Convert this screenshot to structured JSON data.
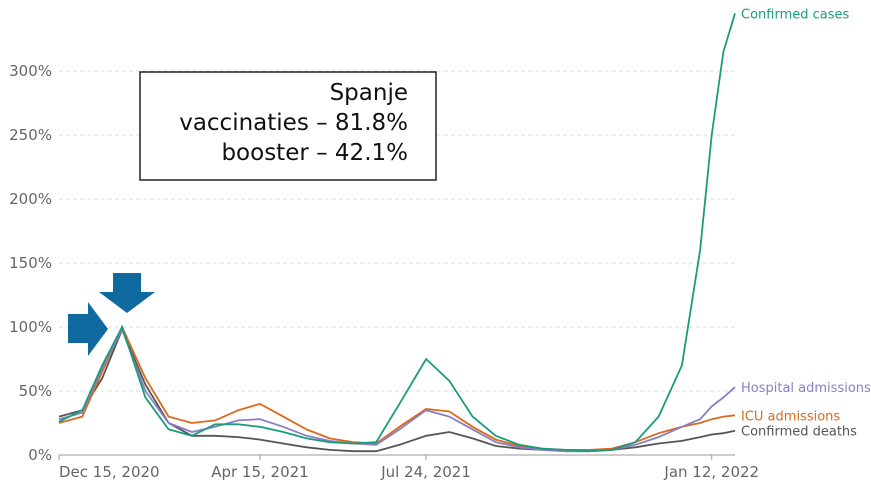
{
  "chart_data": {
    "type": "line",
    "x": [
      "2020-12-15",
      "2020-12-29",
      "2021-01-10",
      "2021-01-22",
      "2021-02-05",
      "2021-02-19",
      "2021-03-05",
      "2021-03-19",
      "2021-04-02",
      "2021-04-15",
      "2021-04-29",
      "2021-05-13",
      "2021-05-27",
      "2021-06-10",
      "2021-06-24",
      "2021-07-08",
      "2021-07-24",
      "2021-08-07",
      "2021-08-21",
      "2021-09-04",
      "2021-09-18",
      "2021-10-02",
      "2021-10-16",
      "2021-10-30",
      "2021-11-13",
      "2021-11-27",
      "2021-12-11",
      "2021-12-25",
      "2022-01-05",
      "2022-01-12",
      "2022-01-19",
      "2022-01-26"
    ],
    "series": [
      {
        "name": "Confirmed cases",
        "color": "#1a9c7c",
        "values": [
          26,
          35,
          70,
          100,
          45,
          20,
          15,
          24,
          24,
          22,
          18,
          13,
          10,
          9,
          10,
          40,
          75,
          58,
          30,
          15,
          8,
          5,
          4,
          3,
          4,
          10,
          30,
          70,
          160,
          250,
          315,
          345
        ]
      },
      {
        "name": "Hospital admissions",
        "color": "#8a7fc4",
        "values": [
          28,
          33,
          68,
          98,
          50,
          25,
          18,
          22,
          27,
          28,
          22,
          15,
          11,
          9,
          8,
          20,
          35,
          30,
          20,
          10,
          6,
          4,
          3,
          3,
          4,
          8,
          14,
          22,
          28,
          38,
          45,
          53
        ]
      },
      {
        "name": "ICU admissions",
        "color": "#d96a1f",
        "values": [
          25,
          30,
          65,
          100,
          60,
          30,
          25,
          27,
          35,
          40,
          30,
          20,
          13,
          10,
          9,
          22,
          36,
          34,
          22,
          12,
          7,
          5,
          4,
          4,
          5,
          10,
          17,
          22,
          25,
          28,
          30,
          31
        ]
      },
      {
        "name": "Confirmed deaths",
        "color": "#555555",
        "values": [
          30,
          35,
          60,
          98,
          55,
          25,
          15,
          15,
          14,
          12,
          9,
          6,
          4,
          3,
          3,
          8,
          15,
          18,
          13,
          7,
          5,
          4,
          3,
          3,
          4,
          6,
          9,
          11,
          14,
          16,
          17,
          19
        ]
      }
    ],
    "xlim": [
      "2020-12-15",
      "2022-01-26"
    ],
    "xticks": [
      {
        "value": "2020-12-15",
        "label": "Dec 15, 2020"
      },
      {
        "value": "2021-04-15",
        "label": "Apr 15, 2021"
      },
      {
        "value": "2021-07-24",
        "label": "Jul 24, 2021"
      },
      {
        "value": "2022-01-12",
        "label": "Jan 12, 2022"
      }
    ],
    "ylim": [
      0,
      350
    ],
    "yticks": [
      {
        "value": 0,
        "label": "0%"
      },
      {
        "value": 50,
        "label": "50%"
      },
      {
        "value": 100,
        "label": "100%"
      },
      {
        "value": 150,
        "label": "150%"
      },
      {
        "value": 200,
        "label": "200%"
      },
      {
        "value": 250,
        "label": "250%"
      },
      {
        "value": 300,
        "label": "300%"
      }
    ],
    "grid": true,
    "annotation": [
      "Spanje",
      "vaccinaties – 81.8%",
      "booster – 42.1%"
    ]
  }
}
